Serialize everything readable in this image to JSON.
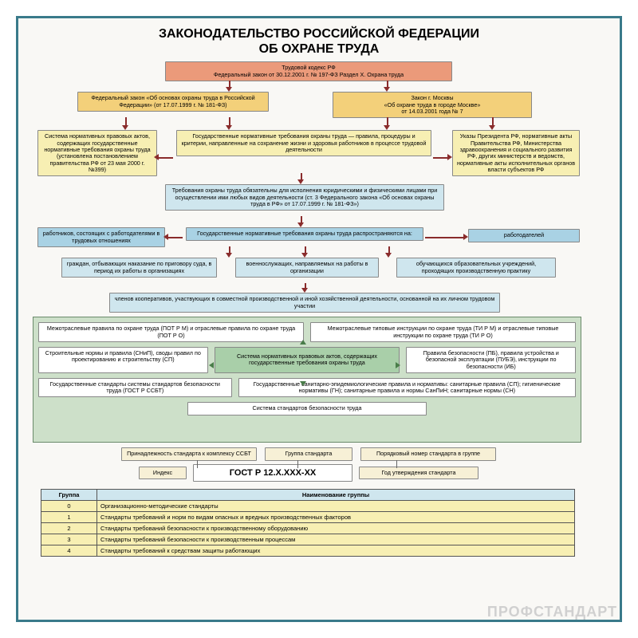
{
  "type": "flowchart",
  "background_color": "#f9f8f5",
  "frame_color": "#3a7a8a",
  "arrow_color": "#8a2c2c",
  "title_line1": "ЗАКОНОДАТЕЛЬСТВО РОССИЙСКОЙ ФЕДЕРАЦИИ",
  "title_line2": "ОБ ОХРАНЕ ТРУДА",
  "title_fontsize": 16,
  "colors": {
    "coral": "#eb9a7a",
    "gold": "#f3d07a",
    "pale_yellow": "#f7efb3",
    "sky": "#cfe6ee",
    "blue": "#a9d2e4",
    "green_band": "#cde0c9",
    "green_mid": "#a9cfa9",
    "cream": "#f7f0d6",
    "white": "#ffffff"
  },
  "boxes": {
    "tk": "Трудовой кодекс РФ\nФедеральный закон от 30.12.2001 г. № 197-ФЗ Раздел X. Охрана труда",
    "fed_law": "Федеральный закон «Об основах охраны труда в Российской Федерации» (от 17.07.1999 г. № 181-ФЗ)",
    "moscow_law": "Закон г. Москвы\n«Об охране труда в городе Москве»\nот 14.03.2001 года № 7",
    "system_acts": "Система нормативных правовых актов, содержащих государственные нормативные требования охраны труда (установлена постановлением правительства РФ от 23 мая 2000 г. №399)",
    "requirements": "Государственные нормативные требования охраны труда — правила, процедуры и критерии, направленные на сохранение жизни и здоровья работников в процессе трудовой деятельности",
    "decrees": "Указы Президента РФ, нормативные акты Правительства РФ, Министерства здравоохранения и социального развития РФ, других министерств и ведомств, нормативные акты исполнительных органов власти субъектов РФ",
    "mandatory": "Требования охраны труда обязательны для исполнения юридическими и физическими лицами при осуществлении ими любых видов деятельности (ст. 3 Федерального закона «Об основах охраны труда в РФ» от 17.07.1999 г. № 181-ФЗ»)",
    "workers": "работников, состоящих с работодателями в трудовых отношениях",
    "spread": "Государственные нормативные требования охраны труда распространяются на:",
    "employers": "работодателей",
    "citizens": "граждан, отбывающих наказание по приговору суда, в период их работы в организациях",
    "military": "военнослужащих, направляемых на работы в организации",
    "students": "обучающихся образовательных учреждений, проходящих производственную практику",
    "coop": "членов кооперативов, участвующих в совместной производственной и иной хозяйственной деятельности, основанной на их личном трудовом участии",
    "inter_rules": "Межотраслевые правила по охране труда (ПОТ Р М) и отраслевые правила по охране труда (ПОТ Р О)",
    "inter_instr": "Межотраслевые типовые инструкции по охране труда (ТИ Р М) и отраслевые типовые инструкции по охране труда (ТИ Р О)",
    "snip": "Строительные нормы и правила (СНиП), своды правил по проектированию и строительству (СП)",
    "norm_system": "Система нормативных правовых актов, содержащих государственные требования охраны труда",
    "pp_pue": "Правила безопасности (ПБ), правила устройства и безопасной эксплуатации (ПУБЭ), инструкции по безопасности (ИБ)",
    "gost_ssbt": "Государственные стандарты системы стандартов безопасности труда (ГОСТ Р ССБТ)",
    "sanitary": "Государственные санитарно-эпидемиологические правила и нормативы: санитарные правила (СП); гигиенические нормативы (ГН); санитарные правила и нормы СанПиН; санитарные нормы (СН)",
    "ssbt_system": "Система стандартов безопасности труда",
    "tag_ssbt": "Принадлежность стандарта к комплексу ССБТ",
    "tag_group": "Группа стандарта",
    "tag_order": "Порядковый номер стандарта в группе",
    "tag_index": "Индекс",
    "gost_code": "ГОСТ Р 12.Х.ХХХ-ХХ",
    "tag_year": "Год утверждения стандарта"
  },
  "table": {
    "headers": [
      "Группа",
      "Наименование группы"
    ],
    "rows": [
      [
        "0",
        "Организационно-методические стандарты"
      ],
      [
        "1",
        "Стандарты требований и норм по видам опасных и вредных производственных факторов"
      ],
      [
        "2",
        "Стандарты требований безопасности к производственному оборудованию"
      ],
      [
        "3",
        "Стандарты требований безопасности к производственным процессам"
      ],
      [
        "4",
        "Стандарты требований к средствам защиты работающих"
      ]
    ],
    "header_bg": "#cfe6ee",
    "row_bg": "#f7efb3"
  },
  "watermark": "ПРОФСТАНДАРТ"
}
